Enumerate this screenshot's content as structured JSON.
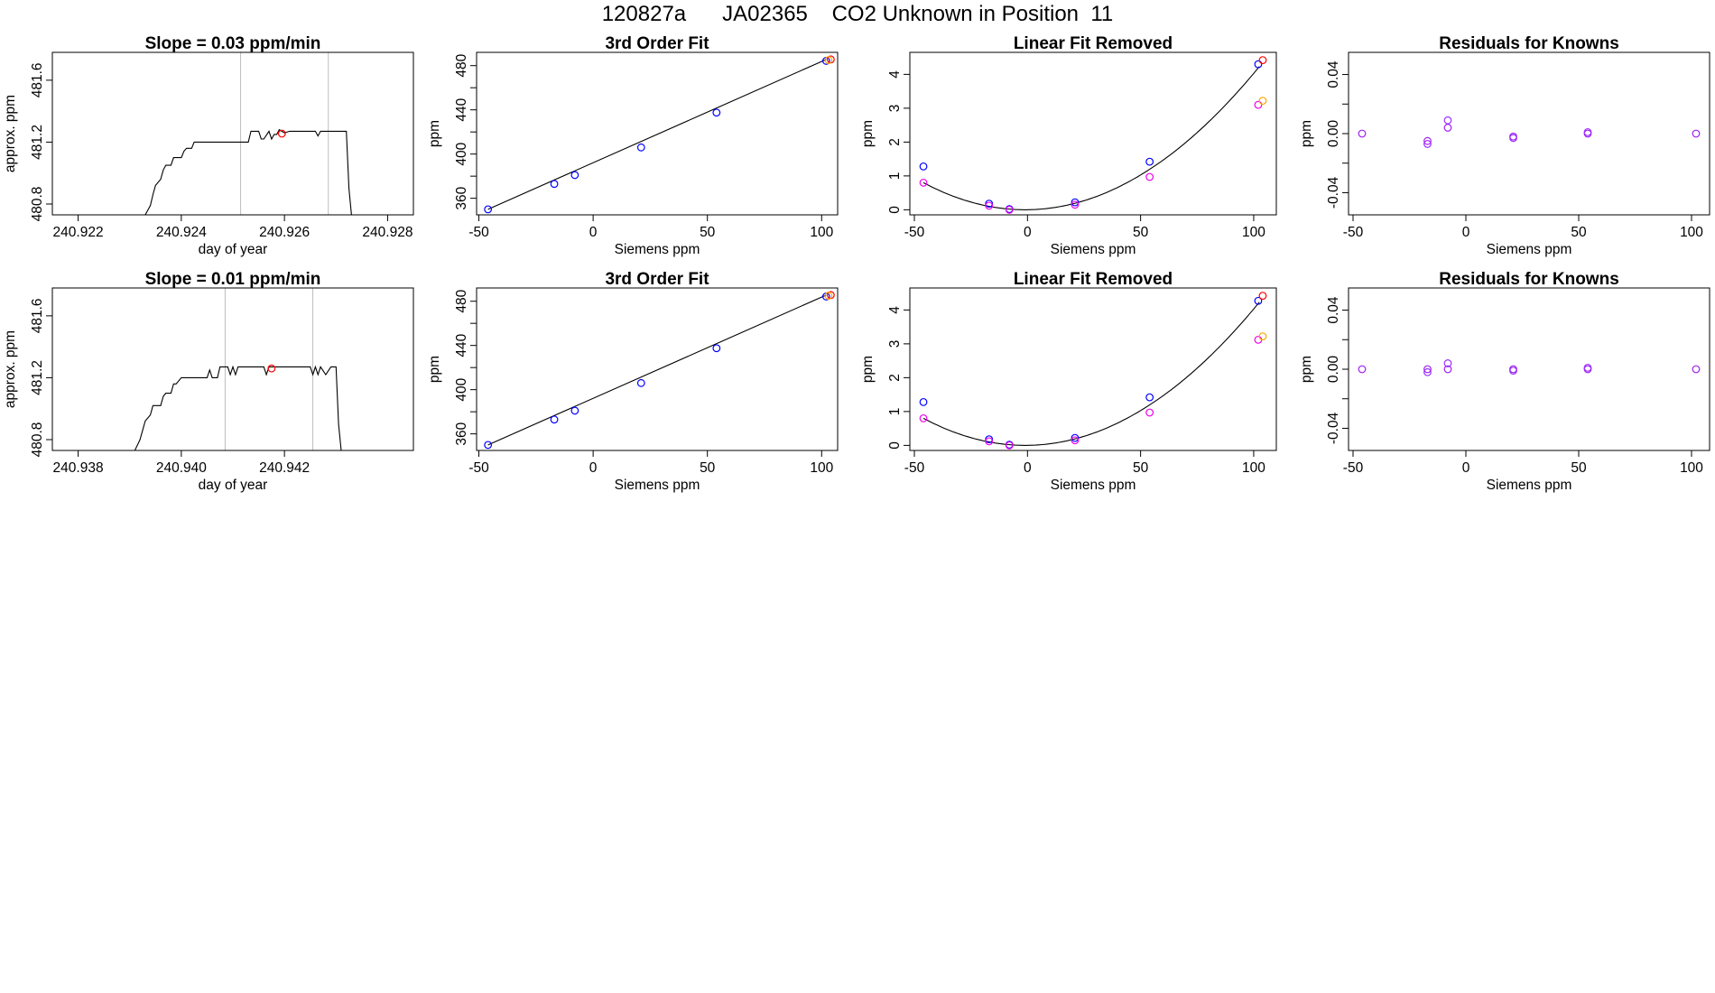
{
  "header": {
    "title": "120827a      JA02365    CO2 Unknown in Position  11"
  },
  "colors": {
    "line": "#000000",
    "vline": "#bebebe",
    "blue": "#0000ff",
    "red": "#ff0000",
    "magenta": "#ee00ee",
    "orange": "#ffa500",
    "purple": "#a020f0",
    "violet": "#9b30ff"
  },
  "chart_data": [
    {
      "id": "r1c1",
      "type": "line",
      "title": "Slope =  0.03  ppm/min",
      "xlabel": "day of year",
      "ylabel": "approx. ppm",
      "xlim": [
        240.9215,
        240.9285
      ],
      "ylim": [
        480.73,
        481.78
      ],
      "xticks": [
        240.922,
        240.924,
        240.926,
        240.928
      ],
      "xtick_labels": [
        "240.922",
        "240.924",
        "240.926",
        "240.928"
      ],
      "yticks": [
        480.8,
        481.2,
        481.6
      ],
      "ytick_labels": [
        "480.8",
        "481.2",
        "481.6"
      ],
      "vlines": [
        240.92515,
        240.92685
      ],
      "series": [
        {
          "x": [
            240.9233,
            240.9234,
            240.92345,
            240.9235,
            240.9236,
            240.92365,
            240.9237,
            240.9238,
            240.92385,
            240.9239,
            240.924,
            240.92405,
            240.9241,
            240.9242,
            240.92425,
            240.9243,
            240.9244,
            240.92445,
            240.9245,
            240.9246,
            240.9247,
            240.9248,
            240.9249,
            240.925,
            240.9251,
            240.9252,
            240.9253,
            240.92535,
            240.9254,
            240.9255,
            240.92555,
            240.9256,
            240.9257,
            240.92575,
            240.9258,
            240.92585,
            240.9259,
            240.926,
            240.9261,
            240.92615,
            240.9262,
            240.9263,
            240.9264,
            240.9265,
            240.9266,
            240.92665,
            240.9267,
            240.9268,
            240.9269,
            240.927,
            240.9271,
            240.92715,
            240.9272,
            240.92725,
            240.9273
          ],
          "y": [
            480.73,
            480.79,
            480.86,
            480.92,
            480.96,
            481.02,
            481.05,
            481.05,
            481.1,
            481.1,
            481.1,
            481.14,
            481.16,
            481.16,
            481.2,
            481.2,
            481.2,
            481.2,
            481.2,
            481.2,
            481.2,
            481.2,
            481.2,
            481.2,
            481.2,
            481.2,
            481.2,
            481.27,
            481.27,
            481.27,
            481.22,
            481.22,
            481.27,
            481.22,
            481.25,
            481.25,
            481.28,
            481.26,
            481.27,
            481.27,
            481.27,
            481.27,
            481.27,
            481.27,
            481.27,
            481.24,
            481.27,
            481.27,
            481.27,
            481.27,
            481.27,
            481.27,
            481.27,
            480.9,
            480.73
          ]
        }
      ],
      "points": [
        {
          "x": 240.92595,
          "y": 481.255,
          "color": "red"
        }
      ]
    },
    {
      "id": "r1c2",
      "type": "scatter",
      "title": "3rd Order Fit",
      "xlabel": "Siemens ppm",
      "ylabel": "ppm",
      "xlim": [
        -51,
        107
      ],
      "ylim": [
        345,
        492
      ],
      "xticks": [
        -50,
        0,
        50,
        100
      ],
      "xtick_labels": [
        "-50",
        "0",
        "50",
        "100"
      ],
      "yticks": [
        360,
        400,
        440,
        480
      ],
      "ytick_labels": [
        "360",
        "400",
        "440",
        "480"
      ],
      "y_minor_ticks": [
        380,
        420,
        460
      ],
      "fit_line": {
        "x": [
          -46,
          102
        ],
        "y": [
          350,
          485.6
        ]
      },
      "points": [
        {
          "x": -46,
          "y": 350,
          "color": "blue"
        },
        {
          "x": -17,
          "y": 373,
          "color": "blue"
        },
        {
          "x": -8,
          "y": 381,
          "color": "blue"
        },
        {
          "x": 21,
          "y": 406,
          "color": "blue"
        },
        {
          "x": 54,
          "y": 437.5,
          "color": "blue"
        },
        {
          "x": 102,
          "y": 484.3,
          "color": "blue"
        },
        {
          "x": 104,
          "y": 485.6,
          "color": "red"
        },
        {
          "x": 103,
          "y": 485,
          "color": "orange"
        }
      ]
    },
    {
      "id": "r1c3",
      "type": "scatter",
      "title": "Linear Fit Removed",
      "xlabel": "Siemens ppm",
      "ylabel": "ppm",
      "xlim": [
        -52,
        110
      ],
      "ylim": [
        -0.15,
        4.65
      ],
      "xticks": [
        -50,
        0,
        50,
        100
      ],
      "xtick_labels": [
        "-50",
        "0",
        "50",
        "100"
      ],
      "yticks": [
        0,
        1,
        2,
        3,
        4
      ],
      "ytick_labels": [
        "0",
        "1",
        "2",
        "3",
        "4"
      ],
      "curve": {
        "a": 0.000395,
        "x0": -1,
        "xrange": [
          -46,
          103
        ]
      },
      "points": [
        {
          "x": -46,
          "y": 1.28,
          "color": "blue"
        },
        {
          "x": -46,
          "y": 0.8,
          "color": "magenta"
        },
        {
          "x": -17,
          "y": 0.18,
          "color": "blue"
        },
        {
          "x": -17,
          "y": 0.12,
          "color": "magenta"
        },
        {
          "x": -8,
          "y": 0.02,
          "color": "blue"
        },
        {
          "x": -8,
          "y": 0.0,
          "color": "magenta"
        },
        {
          "x": 21,
          "y": 0.22,
          "color": "blue"
        },
        {
          "x": 21,
          "y": 0.15,
          "color": "magenta"
        },
        {
          "x": 54,
          "y": 1.42,
          "color": "blue"
        },
        {
          "x": 54,
          "y": 0.97,
          "color": "magenta"
        },
        {
          "x": 102,
          "y": 4.3,
          "color": "blue"
        },
        {
          "x": 104,
          "y": 4.42,
          "color": "red"
        },
        {
          "x": 102,
          "y": 3.1,
          "color": "magenta"
        },
        {
          "x": 104,
          "y": 3.22,
          "color": "orange"
        }
      ]
    },
    {
      "id": "r1c4",
      "type": "scatter",
      "title": "Residuals for Knowns",
      "xlabel": "Siemens ppm",
      "ylabel": "ppm",
      "xlim": [
        -52,
        108
      ],
      "ylim": [
        -0.055,
        0.055
      ],
      "xticks": [
        -50,
        0,
        50,
        100
      ],
      "xtick_labels": [
        "-50",
        "0",
        "50",
        "100"
      ],
      "yticks": [
        -0.04,
        0.0,
        0.04
      ],
      "ytick_labels": [
        "-0.04",
        "0.00",
        "0.04"
      ],
      "y_minor_ticks": [
        -0.02,
        0.02
      ],
      "points": [
        {
          "x": -46,
          "y": 0.0,
          "color": "purple"
        },
        {
          "x": -17,
          "y": -0.005,
          "color": "purple"
        },
        {
          "x": -17,
          "y": -0.007,
          "color": "violet"
        },
        {
          "x": -8,
          "y": 0.004,
          "color": "purple"
        },
        {
          "x": -8,
          "y": 0.009,
          "color": "violet"
        },
        {
          "x": 21,
          "y": -0.002,
          "color": "purple"
        },
        {
          "x": 21,
          "y": -0.003,
          "color": "violet"
        },
        {
          "x": 54,
          "y": 0.0,
          "color": "purple"
        },
        {
          "x": 54,
          "y": 0.001,
          "color": "violet"
        },
        {
          "x": 102,
          "y": 0.0,
          "color": "purple"
        }
      ]
    },
    {
      "id": "r2c1",
      "type": "line",
      "title": "Slope =  0.01  ppm/min",
      "xlabel": "day of year",
      "ylabel": "approx. ppm",
      "xlim": [
        240.9375,
        240.9445
      ],
      "ylim": [
        480.73,
        481.78
      ],
      "xticks": [
        240.938,
        240.94,
        240.942
      ],
      "xtick_labels": [
        "240.938",
        "240.940",
        "240.942"
      ],
      "yticks": [
        480.8,
        481.2,
        481.6
      ],
      "ytick_labels": [
        "480.8",
        "481.2",
        "481.6"
      ],
      "vlines": [
        240.94085,
        240.94255
      ],
      "series": [
        {
          "x": [
            240.9391,
            240.9392,
            240.93925,
            240.9393,
            240.9394,
            240.93945,
            240.9395,
            240.9396,
            240.93965,
            240.9397,
            240.9398,
            240.93985,
            240.9399,
            240.94,
            240.9401,
            240.9402,
            240.9403,
            240.9404,
            240.9405,
            240.94055,
            240.9406,
            240.9407,
            240.94075,
            240.9408,
            240.9409,
            240.94095,
            240.941,
            240.94105,
            240.9411,
            240.94115,
            240.9412,
            240.9413,
            240.9414,
            240.9415,
            240.9416,
            240.94165,
            240.9417,
            240.9418,
            240.9419,
            240.942,
            240.9421,
            240.9422,
            240.9423,
            240.9424,
            240.9425,
            240.94255,
            240.9426,
            240.94265,
            240.9427,
            240.9428,
            240.9429,
            240.94295,
            240.943,
            240.94305,
            240.9431
          ],
          "y": [
            480.73,
            480.8,
            480.86,
            480.92,
            480.96,
            481.02,
            481.02,
            481.02,
            481.08,
            481.1,
            481.1,
            481.16,
            481.16,
            481.2,
            481.2,
            481.2,
            481.2,
            481.2,
            481.2,
            481.25,
            481.2,
            481.2,
            481.27,
            481.27,
            481.27,
            481.22,
            481.27,
            481.22,
            481.27,
            481.27,
            481.27,
            481.27,
            481.27,
            481.27,
            481.27,
            481.22,
            481.27,
            481.27,
            481.27,
            481.27,
            481.27,
            481.27,
            481.27,
            481.27,
            481.27,
            481.22,
            481.27,
            481.22,
            481.27,
            481.22,
            481.27,
            481.27,
            481.27,
            480.9,
            480.73
          ]
        }
      ],
      "points": [
        {
          "x": 240.94175,
          "y": 481.26,
          "color": "red"
        }
      ]
    },
    {
      "id": "r2c2",
      "type": "scatter",
      "title": "3rd Order Fit",
      "xlabel": "Siemens ppm",
      "ylabel": "ppm",
      "xlim": [
        -51,
        107
      ],
      "ylim": [
        345,
        492
      ],
      "xticks": [
        -50,
        0,
        50,
        100
      ],
      "xtick_labels": [
        "-50",
        "0",
        "50",
        "100"
      ],
      "yticks": [
        360,
        400,
        440,
        480
      ],
      "ytick_labels": [
        "360",
        "400",
        "440",
        "480"
      ],
      "y_minor_ticks": [
        380,
        420,
        460
      ],
      "fit_line": {
        "x": [
          -46,
          102
        ],
        "y": [
          350,
          485.6
        ]
      },
      "points": [
        {
          "x": -46,
          "y": 350,
          "color": "blue"
        },
        {
          "x": -17,
          "y": 373,
          "color": "blue"
        },
        {
          "x": -8,
          "y": 381,
          "color": "blue"
        },
        {
          "x": 21,
          "y": 406,
          "color": "blue"
        },
        {
          "x": 54,
          "y": 437.5,
          "color": "blue"
        },
        {
          "x": 102,
          "y": 484.3,
          "color": "blue"
        },
        {
          "x": 104,
          "y": 485.6,
          "color": "red"
        },
        {
          "x": 103,
          "y": 485,
          "color": "orange"
        }
      ]
    },
    {
      "id": "r2c3",
      "type": "scatter",
      "title": "Linear Fit Removed",
      "xlabel": "Siemens ppm",
      "ylabel": "ppm",
      "xlim": [
        -52,
        110
      ],
      "ylim": [
        -0.15,
        4.65
      ],
      "xticks": [
        -50,
        0,
        50,
        100
      ],
      "xtick_labels": [
        "-50",
        "0",
        "50",
        "100"
      ],
      "yticks": [
        0,
        1,
        2,
        3,
        4
      ],
      "ytick_labels": [
        "0",
        "1",
        "2",
        "3",
        "4"
      ],
      "curve": {
        "a": 0.000395,
        "x0": -1,
        "xrange": [
          -46,
          103
        ]
      },
      "points": [
        {
          "x": -46,
          "y": 1.28,
          "color": "blue"
        },
        {
          "x": -46,
          "y": 0.8,
          "color": "magenta"
        },
        {
          "x": -17,
          "y": 0.18,
          "color": "blue"
        },
        {
          "x": -17,
          "y": 0.12,
          "color": "magenta"
        },
        {
          "x": -8,
          "y": 0.02,
          "color": "blue"
        },
        {
          "x": -8,
          "y": 0.0,
          "color": "magenta"
        },
        {
          "x": 21,
          "y": 0.22,
          "color": "blue"
        },
        {
          "x": 21,
          "y": 0.15,
          "color": "magenta"
        },
        {
          "x": 54,
          "y": 1.42,
          "color": "blue"
        },
        {
          "x": 54,
          "y": 0.97,
          "color": "magenta"
        },
        {
          "x": 102,
          "y": 4.27,
          "color": "blue"
        },
        {
          "x": 104,
          "y": 4.42,
          "color": "red"
        },
        {
          "x": 102,
          "y": 3.12,
          "color": "magenta"
        },
        {
          "x": 104,
          "y": 3.22,
          "color": "orange"
        }
      ]
    },
    {
      "id": "r2c4",
      "type": "scatter",
      "title": "Residuals for Knowns",
      "xlabel": "Siemens ppm",
      "ylabel": "ppm",
      "xlim": [
        -52,
        108
      ],
      "ylim": [
        -0.055,
        0.055
      ],
      "xticks": [
        -50,
        0,
        50,
        100
      ],
      "xtick_labels": [
        "-50",
        "0",
        "50",
        "100"
      ],
      "yticks": [
        -0.04,
        0.0,
        0.04
      ],
      "ytick_labels": [
        "-0.04",
        "0.00",
        "0.04"
      ],
      "y_minor_ticks": [
        -0.02,
        0.02
      ],
      "points": [
        {
          "x": -46,
          "y": 0.0,
          "color": "purple"
        },
        {
          "x": -17,
          "y": 0.0,
          "color": "purple"
        },
        {
          "x": -17,
          "y": -0.002,
          "color": "violet"
        },
        {
          "x": -8,
          "y": 0.0,
          "color": "purple"
        },
        {
          "x": -8,
          "y": 0.004,
          "color": "violet"
        },
        {
          "x": 21,
          "y": 0.0,
          "color": "purple"
        },
        {
          "x": 21,
          "y": -0.001,
          "color": "violet"
        },
        {
          "x": 54,
          "y": 0.0,
          "color": "purple"
        },
        {
          "x": 54,
          "y": 0.001,
          "color": "violet"
        },
        {
          "x": 102,
          "y": 0.0,
          "color": "purple"
        }
      ]
    }
  ]
}
